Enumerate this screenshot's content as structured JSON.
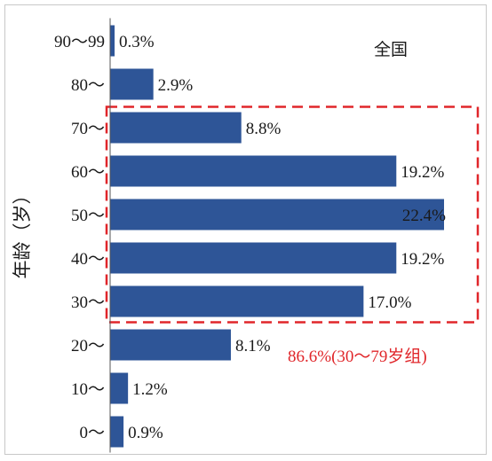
{
  "chart_data": {
    "type": "bar",
    "orientation": "horizontal",
    "region_label": "全国",
    "ylabel": "年龄（岁）",
    "xlabel": "",
    "categories": [
      "0～",
      "10～",
      "20～",
      "30～",
      "40～",
      "50～",
      "60～",
      "70～",
      "80～",
      "90～99"
    ],
    "values": [
      0.9,
      1.2,
      8.1,
      17.0,
      19.2,
      22.4,
      19.2,
      8.8,
      2.9,
      0.3
    ],
    "value_labels": [
      "0.9%",
      "1.2%",
      "8.1%",
      "17.0%",
      "19.2%",
      "22.4%",
      "19.2%",
      "8.8%",
      "2.9%",
      "0.3%"
    ],
    "xlim": [
      0,
      22.4
    ],
    "grid": false,
    "legend": "none",
    "bar_color": "#2e5597",
    "highlight": {
      "categories": [
        "30～",
        "40～",
        "50～",
        "60～",
        "70～"
      ],
      "label": "86.6%(30～79岁组)",
      "color": "#e0262a",
      "style": "dashed"
    }
  }
}
